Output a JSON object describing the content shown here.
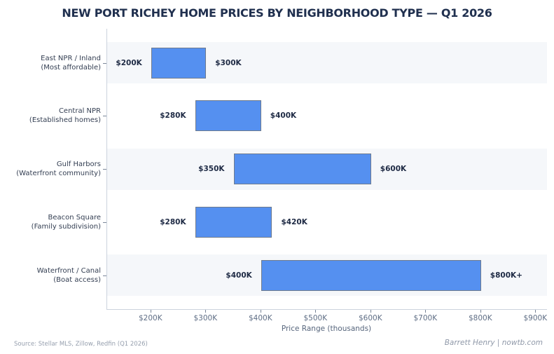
{
  "chart_data": {
    "type": "bar",
    "subtype": "range",
    "orientation": "horizontal",
    "title": "NEW PORT RICHEY HOME PRICES BY NEIGHBORHOOD TYPE — Q1 2026",
    "xlabel": "Price Range (thousands)",
    "xlim": [
      120,
      920
    ],
    "grid": false,
    "legend": null,
    "x_ticks": [
      {
        "value": 200,
        "label": "$200K"
      },
      {
        "value": 300,
        "label": "$300K"
      },
      {
        "value": 400,
        "label": "$400K"
      },
      {
        "value": 500,
        "label": "$500K"
      },
      {
        "value": 600,
        "label": "$600K"
      },
      {
        "value": 700,
        "label": "$700K"
      },
      {
        "value": 800,
        "label": "$800K"
      },
      {
        "value": 900,
        "label": "$900K"
      }
    ],
    "rows": [
      {
        "name": "East NPR / Inland",
        "subtitle": "(Most affordable)",
        "start": 200,
        "end": 300,
        "start_label": "$200K",
        "end_label": "$300K"
      },
      {
        "name": "Central NPR",
        "subtitle": "(Established homes)",
        "start": 280,
        "end": 400,
        "start_label": "$280K",
        "end_label": "$400K"
      },
      {
        "name": "Gulf Harbors",
        "subtitle": "(Waterfront community)",
        "start": 350,
        "end": 600,
        "start_label": "$350K",
        "end_label": "$600K"
      },
      {
        "name": "Beacon Square",
        "subtitle": "(Family subdivision)",
        "start": 280,
        "end": 420,
        "start_label": "$280K",
        "end_label": "$420K"
      },
      {
        "name": "Waterfront / Canal",
        "subtitle": "(Boat access)",
        "start": 400,
        "end": 800,
        "start_label": "$400K",
        "end_label": "$800K+"
      }
    ],
    "band_rows": [
      0,
      2,
      4
    ]
  },
  "footer": {
    "source": "Source: Stellar MLS, Zillow, Redfin (Q1 2026)",
    "credit": "Barrett Henry | nowtb.com"
  },
  "colors": {
    "bar_fill": "#5590f0",
    "bar_border": "#6e7b8e",
    "band": "#f5f7fa",
    "spine": "#ccd3dd",
    "title": "#20304f",
    "value_label": "#1e2a44",
    "row_label": "#333e52",
    "tick_label": "#5f6e85"
  }
}
